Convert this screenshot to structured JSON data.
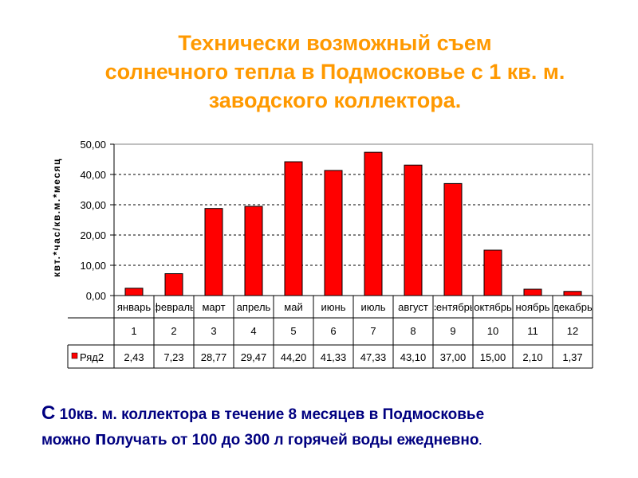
{
  "title": {
    "lines": [
      "Технически возможный съем",
      "солнечного тепла в Подмосковье с 1 кв. м.",
      "заводского коллектора."
    ]
  },
  "chart_data": {
    "type": "bar",
    "categories": [
      "январь",
      "февраль",
      "март",
      "апрель",
      "май",
      "июнь",
      "июль",
      "август",
      "сентябрь",
      "октябрь",
      "ноябрь",
      "декабрь"
    ],
    "category_numbers": [
      "1",
      "2",
      "3",
      "4",
      "5",
      "6",
      "7",
      "8",
      "9",
      "10",
      "11",
      "12"
    ],
    "series": [
      {
        "name": "Ряд2",
        "values": [
          2.43,
          7.23,
          28.77,
          29.47,
          44.2,
          41.33,
          47.33,
          43.1,
          37.0,
          15.0,
          2.1,
          1.37
        ],
        "value_labels": [
          "2,43",
          "7,23",
          "28,77",
          "29,47",
          "44,20",
          "41,33",
          "47,33",
          "43,10",
          "37,00",
          "15,00",
          "2,10",
          "1,37"
        ],
        "color": "#ff0000"
      }
    ],
    "ylabel": "квт.*час/кв.м.*месяц",
    "ylim": [
      0,
      50
    ],
    "yticks": [
      0,
      10,
      20,
      30,
      40,
      50
    ],
    "ytick_labels": [
      "0,00",
      "10,00",
      "20,00",
      "30,00",
      "40,00",
      "50,00"
    ],
    "grid": "dashed horizontal",
    "legend": "data table below chart"
  },
  "footer": {
    "line1_cap": "С",
    "line1_rest": " 10кв. м. коллектора в течение 8 месяцев в Подмосковье",
    "line2_a": " можно  ",
    "line2_cap": "п",
    "line2_b": "олучать от 100 до 300 л горячей воды ежедневно",
    "line2_end": "."
  }
}
